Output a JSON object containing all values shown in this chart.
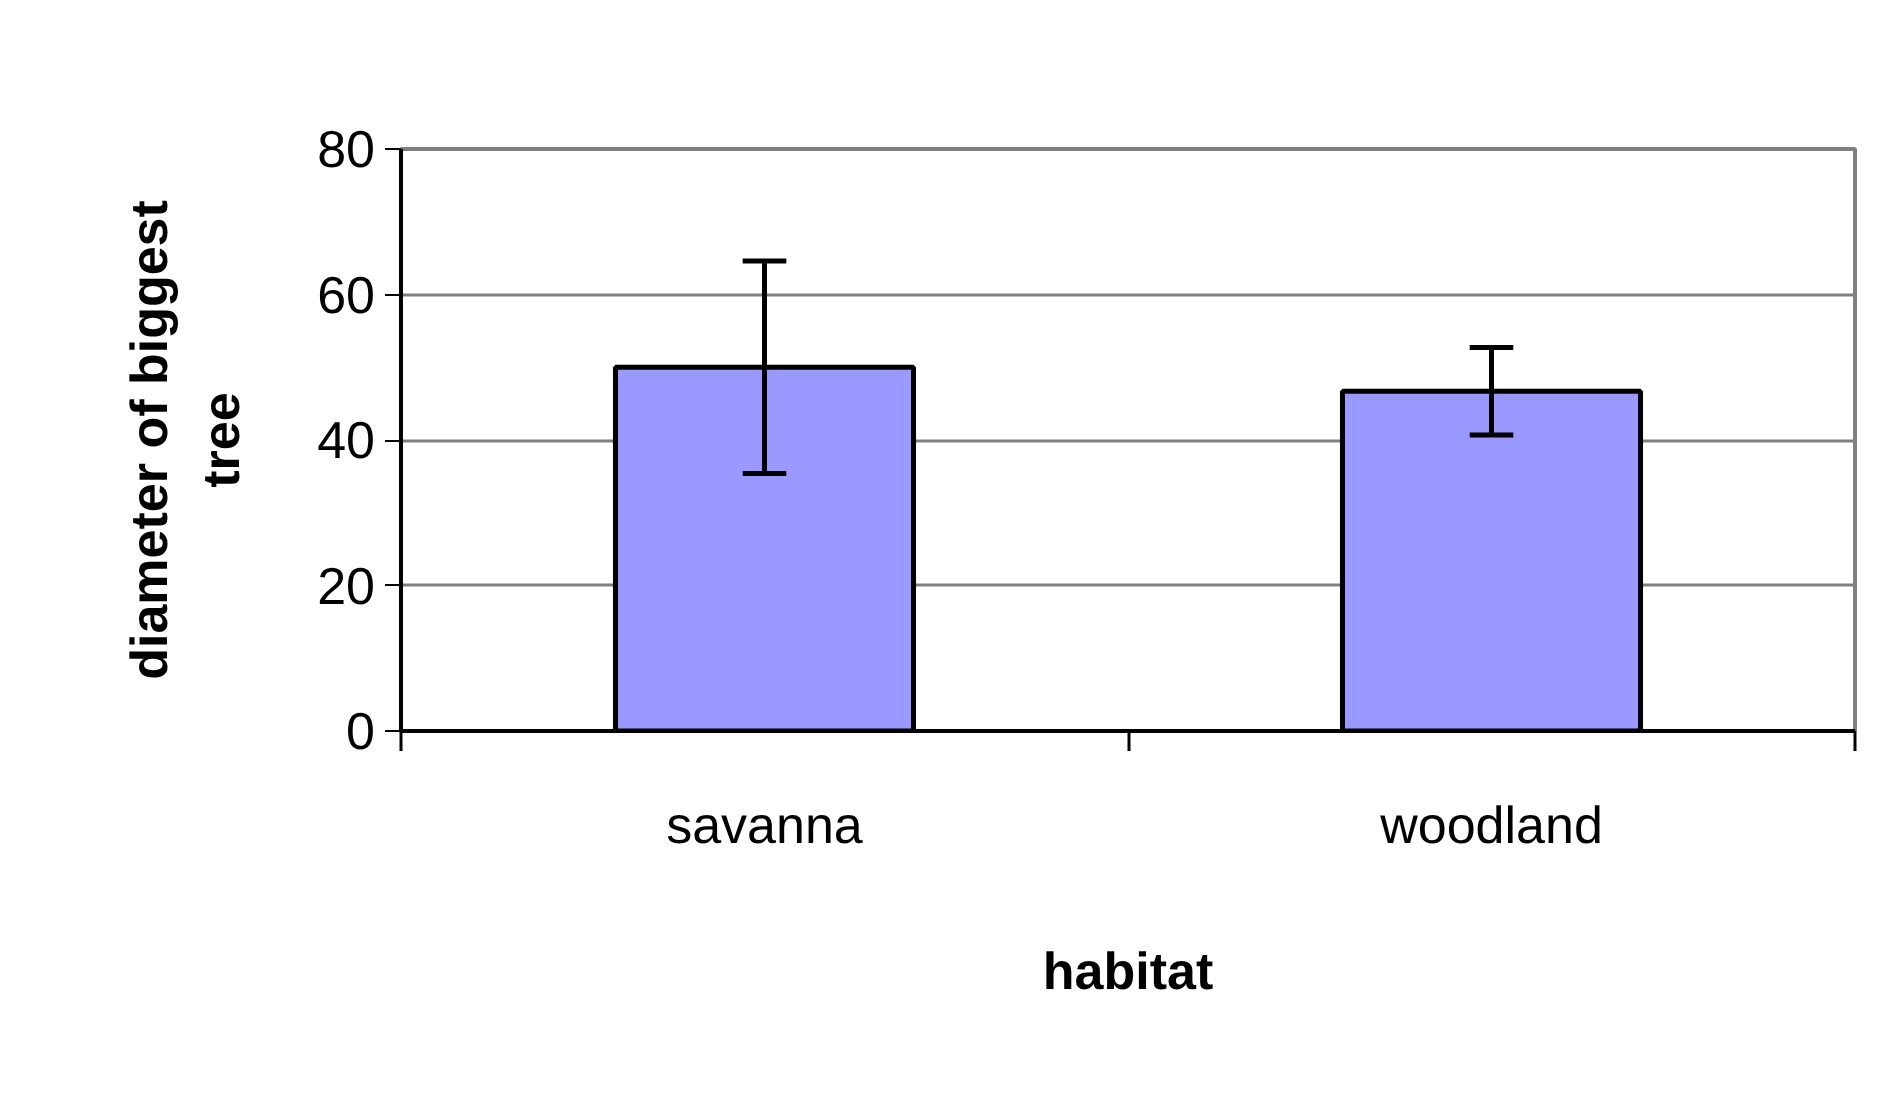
{
  "chart_data": {
    "type": "bar",
    "xlabel": "habitat",
    "ylabel": "diameter of biggest tree",
    "categories": [
      "savanna",
      "woodland"
    ],
    "values": [
      50,
      46.7
    ],
    "errors": [
      14.6,
      6
    ],
    "color": "#9999ff",
    "ylim": [
      0,
      80
    ],
    "yticks": [
      0,
      20,
      40,
      60,
      80
    ],
    "grid": "y"
  }
}
